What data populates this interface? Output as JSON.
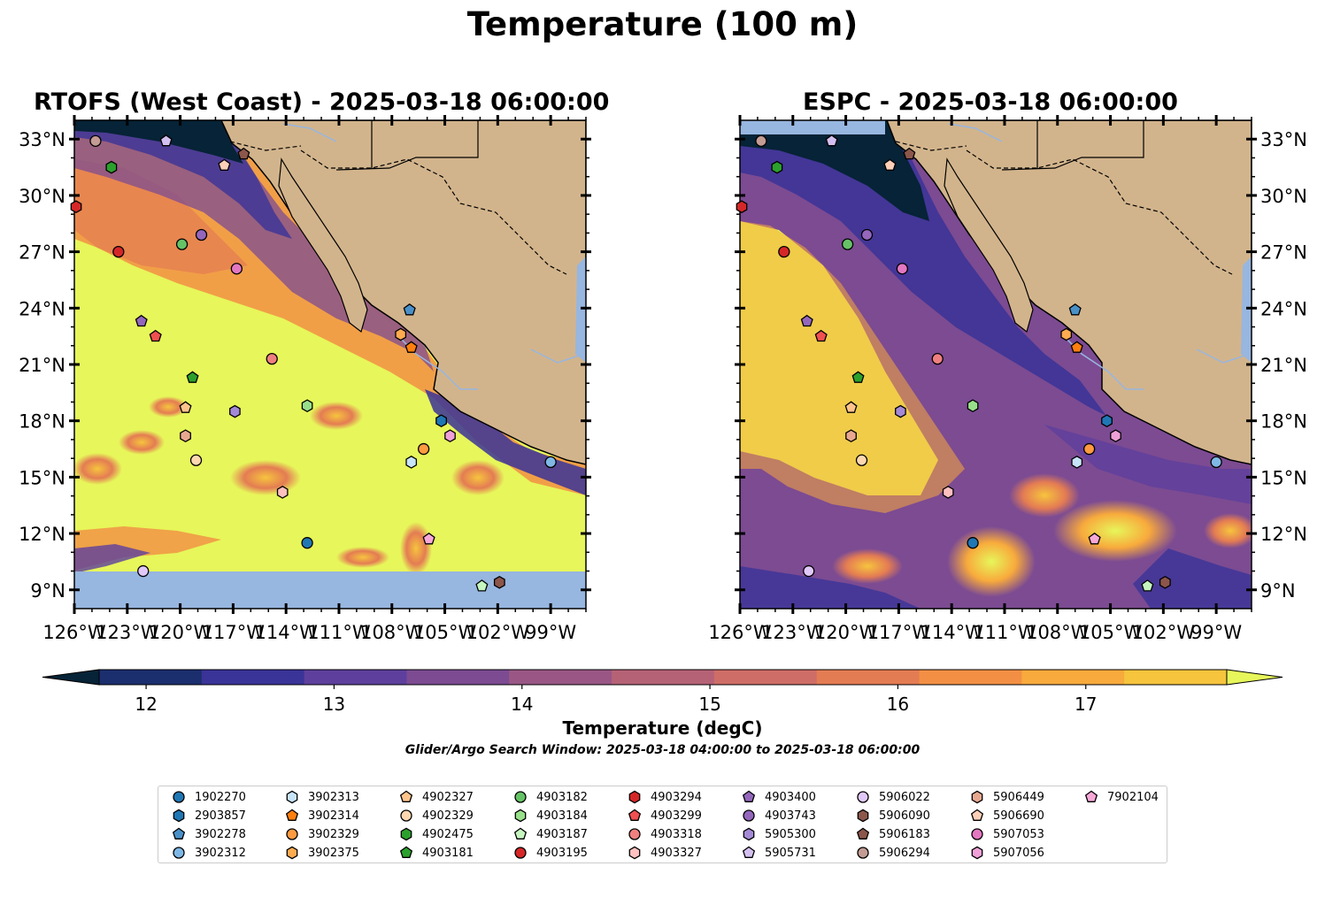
{
  "figure": {
    "title": "Temperature (100 m)",
    "search_window": "Glider/Argo Search Window: 2025-03-18 04:00:00 to 2025-03-18 06:00:00"
  },
  "panels": [
    {
      "title": "RTOFS (West Coast) - 2025-03-18 06:00:00"
    },
    {
      "title": "ESPC - 2025-03-18 06:00:00"
    }
  ],
  "colorbar": {
    "label": "Temperature (degC)",
    "ticks": [
      "12",
      "13",
      "14",
      "15",
      "16",
      "17"
    ],
    "tick_values": [
      12,
      13,
      14,
      15,
      16,
      17
    ],
    "min": 11.75,
    "max": 17.75,
    "colors": [
      "#062337",
      "#1b2e6e",
      "#3a3398",
      "#5e3f9d",
      "#7c4b92",
      "#9a5785",
      "#b66276",
      "#ce6d67",
      "#e47c53",
      "#f28f44",
      "#f8aa3c",
      "#f6c43d",
      "#e7f65a"
    ]
  },
  "axes": {
    "lat_labels": [
      "33°N",
      "30°N",
      "27°N",
      "24°N",
      "21°N",
      "18°N",
      "15°N",
      "12°N",
      "9°N"
    ],
    "lon_labels": [
      "126°W",
      "123°W",
      "120°W",
      "117°W",
      "114°W",
      "111°W",
      "108°W",
      "105°W",
      "102°W",
      "99°W"
    ]
  },
  "colors": {
    "land": "#d2b48c",
    "ocean_nodata": "#97b6e0",
    "river": "#97b6e0"
  },
  "chart_data": {
    "type": "map",
    "title": "Temperature (100 m)",
    "variable": "Temperature (degC)",
    "lon_range": [
      -126,
      -97
    ],
    "lat_range": [
      8,
      34
    ],
    "platforms": [
      {
        "id": "1902270",
        "marker": "circle",
        "color": "#1f77b4",
        "lon": -112.8,
        "lat": 11.5
      },
      {
        "id": "2903857",
        "marker": "hexagon",
        "color": "#1f77b4",
        "lon": -105.2,
        "lat": 18.0
      },
      {
        "id": "3902278",
        "marker": "pentagon",
        "color": "#4a90c8",
        "lon": -107.0,
        "lat": 23.9
      },
      {
        "id": "3902312",
        "marker": "circle",
        "color": "#7fb8e6",
        "lon": -99.0,
        "lat": 15.8
      },
      {
        "id": "3902313",
        "marker": "hexagon",
        "color": "#c8e4f8",
        "lon": -106.9,
        "lat": 15.8
      },
      {
        "id": "3902314",
        "marker": "pentagon",
        "color": "#ff7f0e",
        "lon": -106.9,
        "lat": 21.9
      },
      {
        "id": "3902329",
        "marker": "circle",
        "color": "#ff9a40",
        "lon": -106.2,
        "lat": 16.5
      },
      {
        "id": "3902375",
        "marker": "hexagon",
        "color": "#ffab50",
        "lon": -107.5,
        "lat": 22.6
      },
      {
        "id": "4902327",
        "marker": "pentagon",
        "color": "#ffc48c",
        "lon": -119.7,
        "lat": 18.7
      },
      {
        "id": "4902329",
        "marker": "circle",
        "color": "#ffd8b0",
        "lon": -119.1,
        "lat": 15.9
      },
      {
        "id": "4902475",
        "marker": "hexagon",
        "color": "#2ca02c",
        "lon": -123.9,
        "lat": 31.5
      },
      {
        "id": "4903181",
        "marker": "pentagon",
        "color": "#2ca02c",
        "lon": -119.3,
        "lat": 20.3
      },
      {
        "id": "4903182",
        "marker": "circle",
        "color": "#66c266",
        "lon": -119.9,
        "lat": 27.4
      },
      {
        "id": "4903184",
        "marker": "hexagon",
        "color": "#98df8a",
        "lon": -112.8,
        "lat": 18.8
      },
      {
        "id": "4903187",
        "marker": "pentagon",
        "color": "#c6f5c0",
        "lon": -102.9,
        "lat": 9.2
      },
      {
        "id": "4903195",
        "marker": "circle",
        "color": "#d62728",
        "lon": -123.5,
        "lat": 27.0
      },
      {
        "id": "4903294",
        "marker": "hexagon",
        "color": "#d62728",
        "lon": -125.9,
        "lat": 29.4
      },
      {
        "id": "4903299",
        "marker": "pentagon",
        "color": "#f05050",
        "lon": -121.4,
        "lat": 22.5
      },
      {
        "id": "4903318",
        "marker": "circle",
        "color": "#f08080",
        "lon": -114.8,
        "lat": 21.3
      },
      {
        "id": "4903327",
        "marker": "hexagon",
        "color": "#ffc0c0",
        "lon": -114.2,
        "lat": 14.2
      },
      {
        "id": "4903400",
        "marker": "pentagon",
        "color": "#9467bd",
        "lon": -122.2,
        "lat": 23.3
      },
      {
        "id": "4903743",
        "marker": "circle",
        "color": "#9467bd",
        "lon": -118.8,
        "lat": 27.9
      },
      {
        "id": "5905300",
        "marker": "hexagon",
        "color": "#a48ad6",
        "lon": -116.9,
        "lat": 18.5
      },
      {
        "id": "5905731",
        "marker": "pentagon",
        "color": "#d4c0f0",
        "lon": -120.8,
        "lat": 32.9
      },
      {
        "id": "5906022",
        "marker": "circle",
        "color": "#e0c8f8",
        "lon": -122.1,
        "lat": 10.0
      },
      {
        "id": "5906090",
        "marker": "hexagon",
        "color": "#8c564b",
        "lon": -101.9,
        "lat": 9.4
      },
      {
        "id": "5906183",
        "marker": "pentagon",
        "color": "#8c564b",
        "lon": -116.4,
        "lat": 32.2
      },
      {
        "id": "5906294",
        "marker": "circle",
        "color": "#c49c94",
        "lon": -124.8,
        "lat": 32.9
      },
      {
        "id": "5906449",
        "marker": "hexagon",
        "color": "#e8a890",
        "lon": -119.7,
        "lat": 17.2
      },
      {
        "id": "5906690",
        "marker": "pentagon",
        "color": "#ffd0b8",
        "lon": -117.5,
        "lat": 31.6
      },
      {
        "id": "5907053",
        "marker": "circle",
        "color": "#e377c2",
        "lon": -116.8,
        "lat": 26.1
      },
      {
        "id": "5907056",
        "marker": "hexagon",
        "color": "#f0a0d8",
        "lon": -104.7,
        "lat": 17.2
      },
      {
        "id": "7902104",
        "marker": "pentagon",
        "color": "#f7a8d8",
        "lon": -105.9,
        "lat": 11.7
      }
    ]
  },
  "legend": {
    "items": [
      {
        "id": "1902270",
        "marker": "circle",
        "color": "#1f77b4"
      },
      {
        "id": "2903857",
        "marker": "hexagon",
        "color": "#1f77b4"
      },
      {
        "id": "3902278",
        "marker": "pentagon",
        "color": "#4a90c8"
      },
      {
        "id": "3902312",
        "marker": "circle",
        "color": "#7fb8e6"
      },
      {
        "id": "3902313",
        "marker": "hexagon",
        "color": "#c8e4f8"
      },
      {
        "id": "3902314",
        "marker": "pentagon",
        "color": "#ff7f0e"
      },
      {
        "id": "3902329",
        "marker": "circle",
        "color": "#ff9a40"
      },
      {
        "id": "3902375",
        "marker": "hexagon",
        "color": "#ffab50"
      },
      {
        "id": "4902327",
        "marker": "pentagon",
        "color": "#ffc48c"
      },
      {
        "id": "4902329",
        "marker": "circle",
        "color": "#ffd8b0"
      },
      {
        "id": "4902475",
        "marker": "hexagon",
        "color": "#2ca02c"
      },
      {
        "id": "4903181",
        "marker": "pentagon",
        "color": "#2ca02c"
      },
      {
        "id": "4903182",
        "marker": "circle",
        "color": "#66c266"
      },
      {
        "id": "4903184",
        "marker": "hexagon",
        "color": "#98df8a"
      },
      {
        "id": "4903187",
        "marker": "pentagon",
        "color": "#c6f5c0"
      },
      {
        "id": "4903195",
        "marker": "circle",
        "color": "#d62728"
      },
      {
        "id": "4903294",
        "marker": "hexagon",
        "color": "#d62728"
      },
      {
        "id": "4903299",
        "marker": "pentagon",
        "color": "#f05050"
      },
      {
        "id": "4903318",
        "marker": "circle",
        "color": "#f08080"
      },
      {
        "id": "4903327",
        "marker": "hexagon",
        "color": "#ffc0c0"
      },
      {
        "id": "4903400",
        "marker": "pentagon",
        "color": "#9467bd"
      },
      {
        "id": "4903743",
        "marker": "circle",
        "color": "#9467bd"
      },
      {
        "id": "5905300",
        "marker": "hexagon",
        "color": "#a48ad6"
      },
      {
        "id": "5905731",
        "marker": "pentagon",
        "color": "#d4c0f0"
      },
      {
        "id": "5906022",
        "marker": "circle",
        "color": "#e0c8f8"
      },
      {
        "id": "5906090",
        "marker": "hexagon",
        "color": "#8c564b"
      },
      {
        "id": "5906183",
        "marker": "pentagon",
        "color": "#8c564b"
      },
      {
        "id": "5906294",
        "marker": "circle",
        "color": "#c49c94"
      },
      {
        "id": "5906449",
        "marker": "hexagon",
        "color": "#e8a890"
      },
      {
        "id": "5906690",
        "marker": "pentagon",
        "color": "#ffd0b8"
      },
      {
        "id": "5907053",
        "marker": "circle",
        "color": "#e377c2"
      },
      {
        "id": "5907056",
        "marker": "hexagon",
        "color": "#f0a0d8"
      },
      {
        "id": "7902104",
        "marker": "pentagon",
        "color": "#f7a8d8"
      }
    ]
  }
}
